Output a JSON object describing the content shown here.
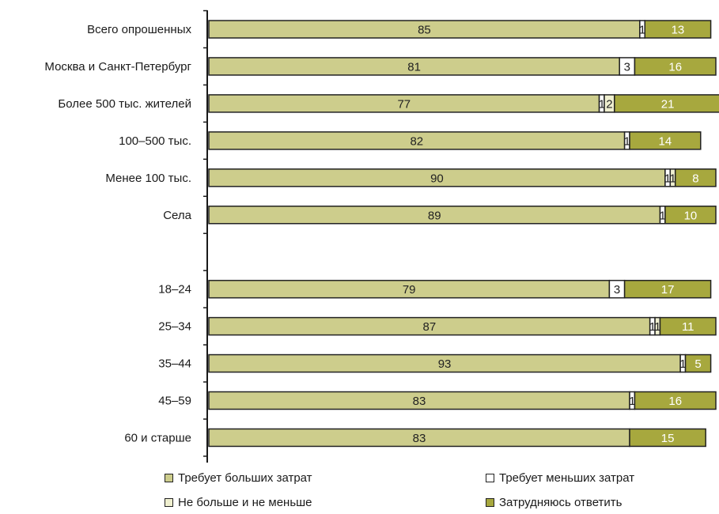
{
  "colors": {
    "more": "#cdcd8c",
    "less": "#ffffff",
    "same": "#efefcf",
    "hard": "#a7a83e",
    "axis": "#1a1a1a"
  },
  "legend": [
    {
      "label": "Требует больших затрат",
      "color_key": "more"
    },
    {
      "label": "Требует меньших затрат",
      "color_key": "less"
    },
    {
      "label": "Не больше и не меньше",
      "color_key": "same"
    },
    {
      "label": "Затрудняюсь ответить",
      "color_key": "hard"
    }
  ],
  "chart_data": {
    "type": "bar",
    "orientation": "horizontal",
    "stacked": true,
    "xlim": [
      0,
      100
    ],
    "categories": [
      "Всего опрошенных",
      "Москва и Санкт-Петербург",
      "Более 500 тыс. жителей",
      "100–500 тыс.",
      "Менее 100 тыс.",
      "Села",
      "",
      "18–24",
      "25–34",
      "35–44",
      "45–59",
      "60 и старше"
    ],
    "series": [
      {
        "name": "Требует больших затрат",
        "values": [
          85,
          81,
          77,
          82,
          90,
          89,
          null,
          79,
          87,
          93,
          83,
          83
        ]
      },
      {
        "name": "Требует меньших затрат",
        "values": [
          1,
          3,
          1,
          1,
          1,
          1,
          null,
          3,
          1,
          1,
          1,
          0
        ]
      },
      {
        "name": "Не больше и не меньше",
        "values": [
          0,
          0,
          2,
          0,
          1,
          0,
          null,
          0,
          1,
          0,
          0,
          0
        ]
      },
      {
        "name": "Затрудняюсь ответить",
        "values": [
          13,
          16,
          21,
          14,
          8,
          10,
          null,
          17,
          11,
          5,
          16,
          15
        ]
      }
    ],
    "grid": false,
    "legend_position": "bottom"
  }
}
